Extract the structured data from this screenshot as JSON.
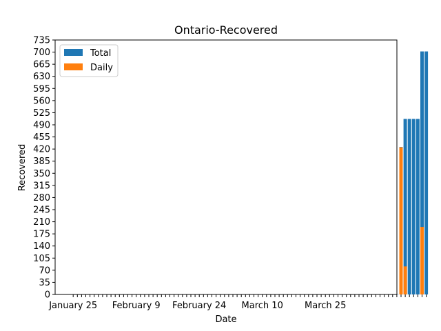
{
  "chart_data": {
    "type": "bar",
    "title": "Ontario-Recovered",
    "xlabel": "Date",
    "ylabel": "Recovered",
    "ylim": [
      0,
      735
    ],
    "yticks": [
      0,
      35,
      70,
      105,
      140,
      175,
      210,
      245,
      280,
      315,
      350,
      385,
      420,
      455,
      490,
      525,
      560,
      595,
      630,
      665,
      700,
      735
    ],
    "xtick_labels": [
      "January 25",
      "February 9",
      "February 24",
      "March 10",
      "March 25"
    ],
    "legend": {
      "position": "upper-left",
      "entries": [
        "Total",
        "Daily"
      ]
    },
    "colors": {
      "Total": "#1f77b4",
      "Daily": "#ff7f0e"
    },
    "series": [
      {
        "name": "Total",
        "values": [
          0,
          0,
          0,
          0,
          0,
          0,
          0,
          0,
          0,
          0,
          0,
          0,
          0,
          0,
          0,
          0,
          0,
          0,
          0,
          0,
          0,
          0,
          0,
          0,
          0,
          0,
          0,
          0,
          0,
          0,
          0,
          0,
          0,
          0,
          0,
          0,
          0,
          0,
          0,
          0,
          0,
          0,
          0,
          0,
          0,
          0,
          0,
          0,
          0,
          0,
          0,
          0,
          0,
          0,
          0,
          0,
          0,
          0,
          0,
          0,
          0,
          0,
          0,
          0,
          0,
          0,
          1,
          1,
          1,
          1,
          1,
          1,
          1,
          1,
          1,
          1,
          1,
          1,
          426,
          507,
          507,
          507,
          507,
          702,
          702
        ]
      },
      {
        "name": "Daily",
        "values": [
          0,
          0,
          0,
          0,
          0,
          0,
          0,
          0,
          0,
          0,
          0,
          0,
          0,
          0,
          0,
          0,
          0,
          0,
          0,
          0,
          0,
          0,
          0,
          0,
          0,
          0,
          0,
          0,
          0,
          0,
          0,
          0,
          0,
          0,
          0,
          0,
          0,
          0,
          0,
          0,
          0,
          0,
          0,
          0,
          0,
          0,
          0,
          0,
          0,
          0,
          0,
          0,
          0,
          0,
          0,
          0,
          0,
          0,
          0,
          0,
          0,
          0,
          0,
          0,
          0,
          0,
          0,
          0,
          0,
          0,
          0,
          0,
          0,
          0,
          0,
          0,
          0,
          0,
          425,
          81,
          0,
          0,
          0,
          195,
          0
        ]
      }
    ]
  }
}
